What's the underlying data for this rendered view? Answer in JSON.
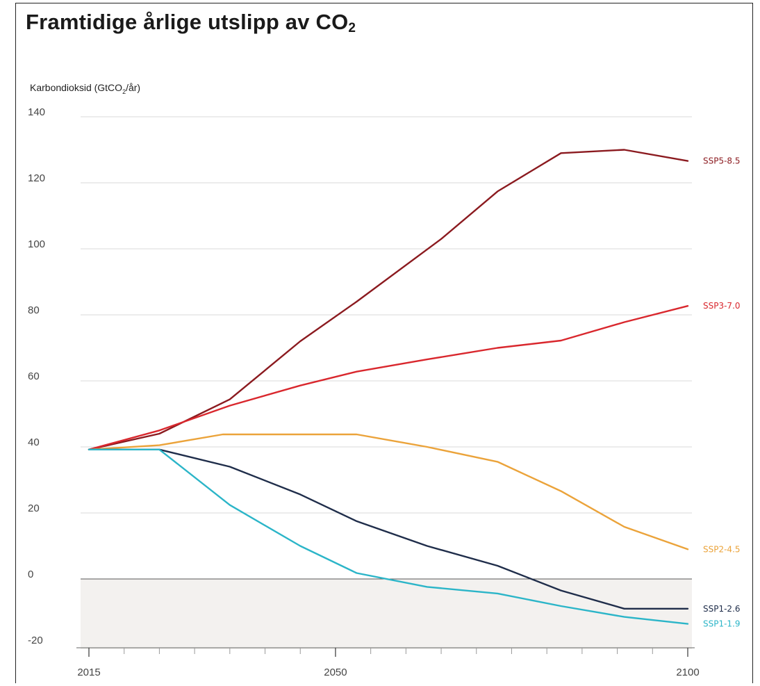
{
  "title_main": "Framtidige årlige utslipp av CO",
  "title_sub": "2",
  "chart_data": {
    "type": "line",
    "title": "Framtidige årlige utslipp av CO₂",
    "ylabel_pre": "Karbondioksid (GtCO",
    "ylabel_sub": "2",
    "ylabel_post": "/år)",
    "xlim": [
      2015,
      2100
    ],
    "ylim": [
      -20,
      140
    ],
    "yticks": [
      -20,
      0,
      20,
      40,
      60,
      80,
      100,
      120,
      140
    ],
    "xtick_labels": [
      {
        "value": 2015,
        "label": "2015"
      },
      {
        "value": 2050,
        "label": "2050"
      },
      {
        "value": 2100,
        "label": "2100"
      }
    ],
    "minor_xticks": [
      2020,
      2025,
      2030,
      2035,
      2040,
      2045,
      2055,
      2060,
      2065,
      2070,
      2075,
      2080,
      2085,
      2090,
      2095
    ],
    "negative_region_shaded": true,
    "grid": "horizontal",
    "series": [
      {
        "name": "SSP5-8.5",
        "color": "#8b1a1f",
        "points": [
          [
            2015,
            39.2
          ],
          [
            2025,
            44
          ],
          [
            2035,
            54.4
          ],
          [
            2045,
            72
          ],
          [
            2053,
            84
          ],
          [
            2065,
            103
          ],
          [
            2073,
            117.4
          ],
          [
            2082,
            129
          ],
          [
            2091,
            130
          ],
          [
            2100,
            126.6
          ]
        ]
      },
      {
        "name": "SSP3-7.0",
        "color": "#d9272d",
        "points": [
          [
            2015,
            39.2
          ],
          [
            2025,
            45
          ],
          [
            2035,
            52.5
          ],
          [
            2045,
            58.6
          ],
          [
            2053,
            62.8
          ],
          [
            2063,
            66.5
          ],
          [
            2073,
            70
          ],
          [
            2082,
            72.2
          ],
          [
            2091,
            77.8
          ],
          [
            2100,
            82.7
          ]
        ]
      },
      {
        "name": "SSP2-4.5",
        "color": "#eba33a",
        "points": [
          [
            2015,
            39.2
          ],
          [
            2025,
            40.5
          ],
          [
            2034,
            43.8
          ],
          [
            2045,
            43.8
          ],
          [
            2053,
            43.8
          ],
          [
            2063,
            40
          ],
          [
            2073,
            35.5
          ],
          [
            2082,
            26.6
          ],
          [
            2091,
            15.8
          ],
          [
            2100,
            9
          ]
        ]
      },
      {
        "name": "SSP1-2.6",
        "color": "#1f2d4a",
        "points": [
          [
            2015,
            39.2
          ],
          [
            2025,
            39.2
          ],
          [
            2035,
            34
          ],
          [
            2045,
            25.6
          ],
          [
            2053,
            17.5
          ],
          [
            2063,
            10
          ],
          [
            2073,
            4
          ],
          [
            2082,
            -3.5
          ],
          [
            2091,
            -9
          ],
          [
            2100,
            -9
          ]
        ]
      },
      {
        "name": "SSP1-1.9",
        "color": "#2bb5c8",
        "points": [
          [
            2015,
            39.2
          ],
          [
            2025,
            39.2
          ],
          [
            2035,
            22.4
          ],
          [
            2045,
            10
          ],
          [
            2053,
            1.8
          ],
          [
            2063,
            -2.4
          ],
          [
            2073,
            -4.4
          ],
          [
            2082,
            -8.2
          ],
          [
            2091,
            -11.5
          ],
          [
            2100,
            -13.6
          ]
        ]
      }
    ]
  }
}
